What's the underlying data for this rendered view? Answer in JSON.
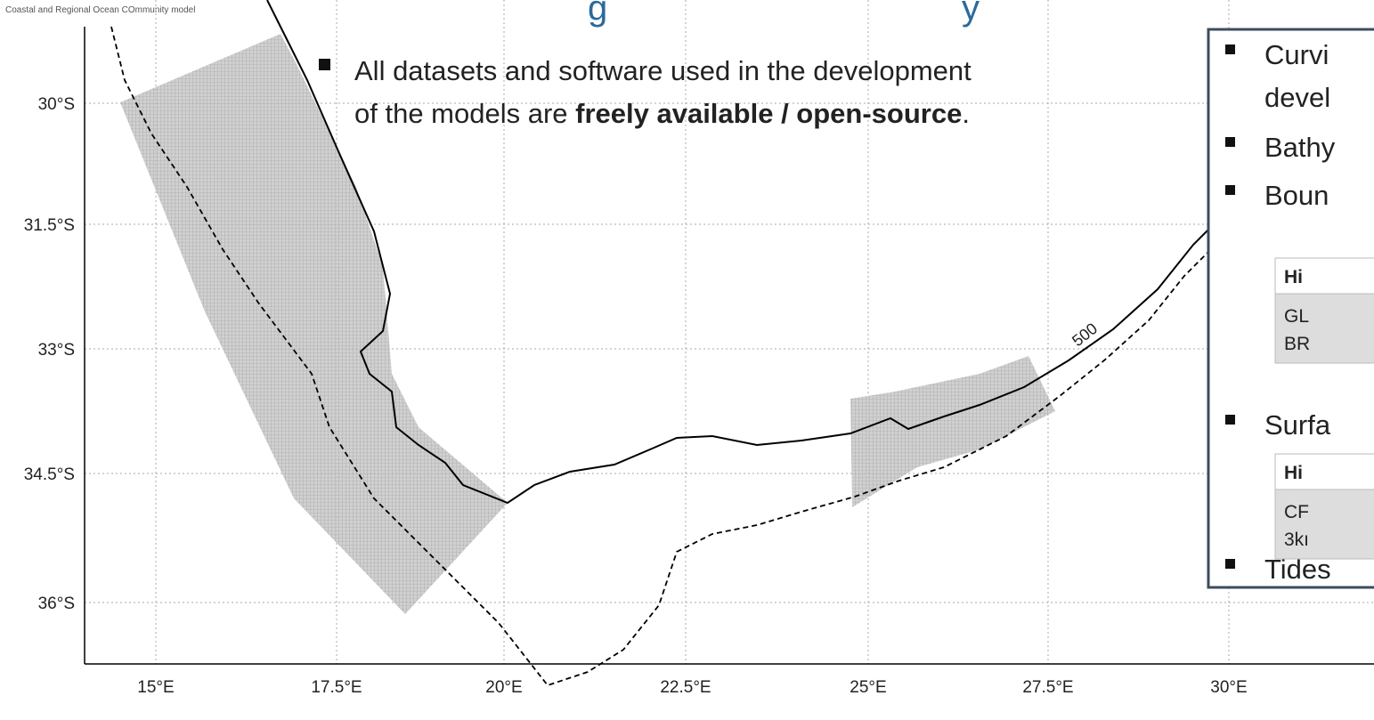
{
  "header": {
    "caption": "Coastal and Regional Ocean COmmunity model",
    "title_fragments": [
      "g",
      "y"
    ]
  },
  "map": {
    "lat_ticks": [
      "30°S",
      "31.5°S",
      "33°S",
      "34.5°S",
      "36°S"
    ],
    "lon_ticks": [
      "15°E",
      "17.5°E",
      "20°E",
      "22.5°E",
      "25°E",
      "27.5°E",
      "30°E"
    ],
    "contour_label": "500"
  },
  "bullet": {
    "text_line1": "All datasets and software used in the development",
    "text_line2_pre": "of the models are ",
    "bold": "freely available / open-source",
    "text_post": "."
  },
  "panel": {
    "items": [
      "Curvi",
      "devel",
      "Bathy",
      "Boun",
      "Surfa",
      "Tides"
    ],
    "tables": [
      {
        "header": "Hi",
        "cells": [
          "GL",
          "BR"
        ]
      },
      {
        "header": "Hi",
        "cells": [
          "CF",
          "3kı"
        ]
      }
    ]
  }
}
